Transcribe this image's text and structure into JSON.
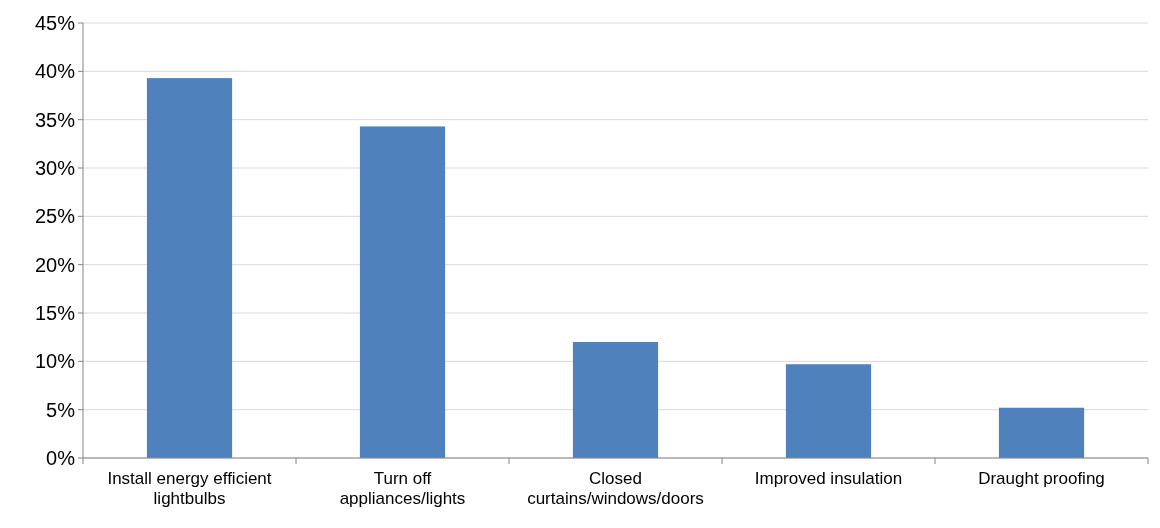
{
  "chart_data": {
    "type": "bar",
    "categories": [
      "Install energy efficient lightbulbs",
      "Turn off appliances/lights",
      "Closed curtains/windows/doors",
      "Improved insulation",
      "Draught proofing"
    ],
    "values": [
      39.3,
      34.3,
      12.0,
      9.7,
      5.2
    ],
    "color": "#4f81bd",
    "ylim": [
      0,
      45
    ],
    "yticks": [
      {
        "value": 0,
        "label": "0%"
      },
      {
        "value": 5,
        "label": "5%"
      },
      {
        "value": 10,
        "label": "10%"
      },
      {
        "value": 15,
        "label": "15%"
      },
      {
        "value": 20,
        "label": "20%"
      },
      {
        "value": 25,
        "label": "25%"
      },
      {
        "value": 30,
        "label": "30%"
      },
      {
        "value": 35,
        "label": "35%"
      },
      {
        "value": 40,
        "label": "40%"
      },
      {
        "value": 45,
        "label": "45%"
      }
    ],
    "grid": "y"
  }
}
